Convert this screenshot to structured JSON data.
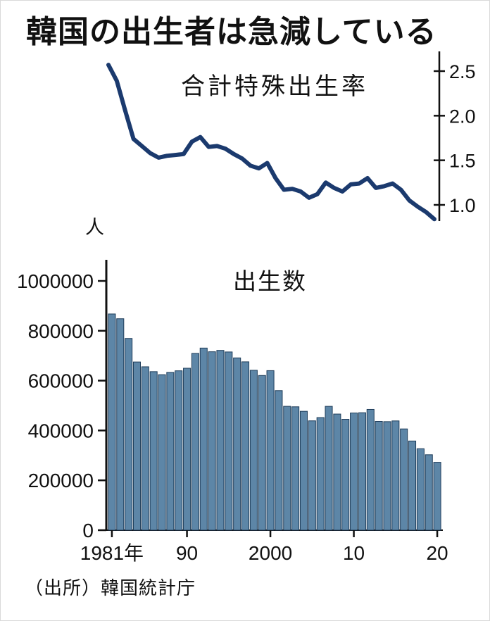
{
  "page": {
    "title": "韓国の出生者は急減している",
    "source": "（出所）韓国統計庁"
  },
  "chart_data": [
    {
      "id": "fertility-rate",
      "type": "line",
      "title": "合計特殊出生率",
      "legend": "none",
      "grid": false,
      "y_axis_side": "right",
      "color": "#1b3a6e",
      "ylim": [
        0.8,
        2.65
      ],
      "yticks": [
        {
          "value": 2.5,
          "label": "2.5"
        },
        {
          "value": 2.0,
          "label": "2.0"
        },
        {
          "value": 1.5,
          "label": "1.5"
        },
        {
          "value": 1.0,
          "label": "1.0"
        }
      ],
      "x": [
        1981,
        1982,
        1983,
        1984,
        1985,
        1986,
        1987,
        1988,
        1989,
        1990,
        1991,
        1992,
        1993,
        1994,
        1995,
        1996,
        1997,
        1998,
        1999,
        2000,
        2001,
        2002,
        2003,
        2004,
        2005,
        2006,
        2007,
        2008,
        2009,
        2010,
        2011,
        2012,
        2013,
        2014,
        2015,
        2016,
        2017,
        2018,
        2019,
        2020
      ],
      "values": [
        2.57,
        2.39,
        2.06,
        1.74,
        1.66,
        1.58,
        1.53,
        1.55,
        1.56,
        1.57,
        1.71,
        1.76,
        1.65,
        1.66,
        1.63,
        1.57,
        1.52,
        1.44,
        1.41,
        1.47,
        1.3,
        1.17,
        1.18,
        1.15,
        1.08,
        1.12,
        1.25,
        1.19,
        1.15,
        1.23,
        1.24,
        1.3,
        1.19,
        1.21,
        1.24,
        1.17,
        1.05,
        0.98,
        0.92,
        0.84
      ]
    },
    {
      "id": "births",
      "type": "bar",
      "title": "出生数",
      "ylabel": "人",
      "grid": false,
      "y_axis_side": "left",
      "bar_color": "#5d86a7",
      "bar_edge_color": "#1e3c59",
      "ylim": [
        0,
        1000000
      ],
      "yticks": [
        {
          "value": 0,
          "label": "0"
        },
        {
          "value": 200000,
          "label": "200000"
        },
        {
          "value": 400000,
          "label": "400000"
        },
        {
          "value": 600000,
          "label": "600000"
        },
        {
          "value": 800000,
          "label": "800000"
        },
        {
          "value": 1000000,
          "label": "1000000"
        }
      ],
      "xticks": [
        {
          "year": 1981,
          "label": "1981年"
        },
        {
          "year": 1990,
          "label": "90"
        },
        {
          "year": 2000,
          "label": "2000"
        },
        {
          "year": 2010,
          "label": "10"
        },
        {
          "year": 2020,
          "label": "20"
        }
      ],
      "x": [
        1981,
        1982,
        1983,
        1984,
        1985,
        1986,
        1987,
        1988,
        1989,
        1990,
        1991,
        1992,
        1993,
        1994,
        1995,
        1996,
        1997,
        1998,
        1999,
        2000,
        2001,
        2002,
        2003,
        2004,
        2005,
        2006,
        2007,
        2008,
        2009,
        2010,
        2011,
        2012,
        2013,
        2014,
        2015,
        2016,
        2017,
        2018,
        2019,
        2020
      ],
      "values": [
        867409,
        848312,
        769155,
        674793,
        655489,
        636019,
        623831,
        633092,
        639431,
        649738,
        709275,
        730678,
        715826,
        721185,
        715020,
        691226,
        675394,
        641594,
        620668,
        640089,
        559934,
        496911,
        495036,
        476958,
        438707,
        451759,
        496822,
        465892,
        444849,
        470171,
        471265,
        484550,
        436455,
        435435,
        438420,
        406243,
        357771,
        326822,
        302676,
        272337
      ]
    }
  ]
}
